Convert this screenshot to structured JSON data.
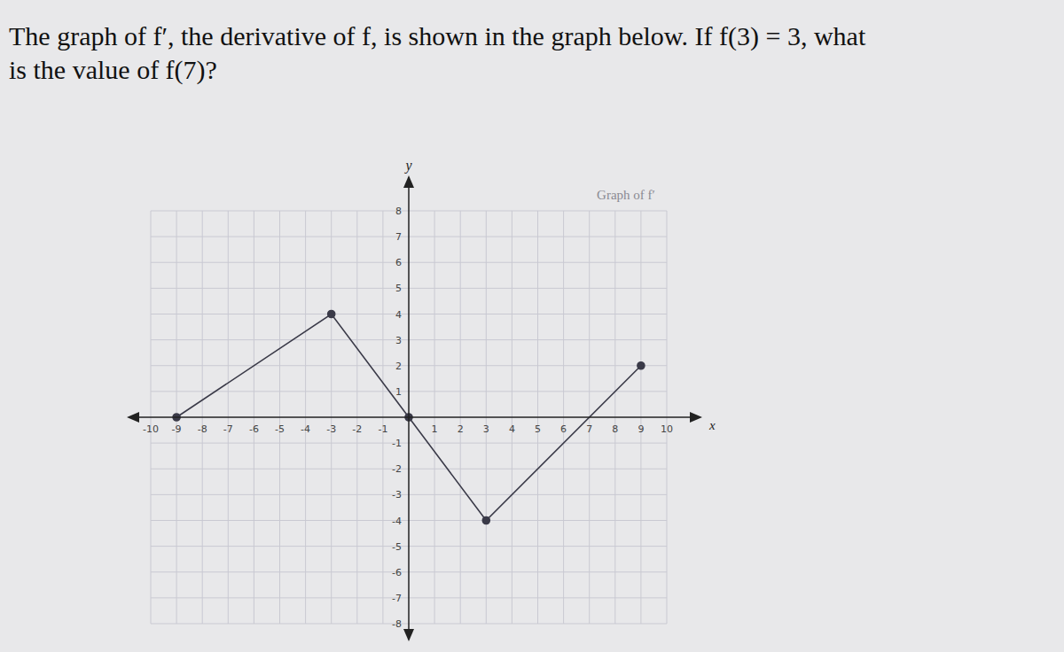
{
  "question": [
    "The graph of f′, the derivative of f, is shown in the graph below. If f(3) = 3, what",
    "is the value of f(7)?"
  ],
  "chart_data": {
    "type": "line",
    "title": "Graph of f′",
    "xlabel": "x",
    "ylabel": "y",
    "x": [
      -9,
      -3,
      0,
      3,
      9
    ],
    "values": [
      0,
      4,
      0,
      -4,
      2
    ],
    "color": "#3a3a48",
    "marker": "circle",
    "xlim": [
      -10,
      10
    ],
    "xticks": [
      -10,
      -9,
      -8,
      -7,
      -6,
      -5,
      -4,
      -3,
      -2,
      -1,
      1,
      2,
      3,
      4,
      5,
      6,
      7,
      8,
      9,
      10
    ],
    "ylim": [
      -8,
      8
    ],
    "yticks": [
      -8,
      -7,
      -6,
      -5,
      -4,
      -3,
      -2,
      -1,
      1,
      2,
      3,
      4,
      5,
      6,
      7,
      8
    ],
    "grid": true
  }
}
